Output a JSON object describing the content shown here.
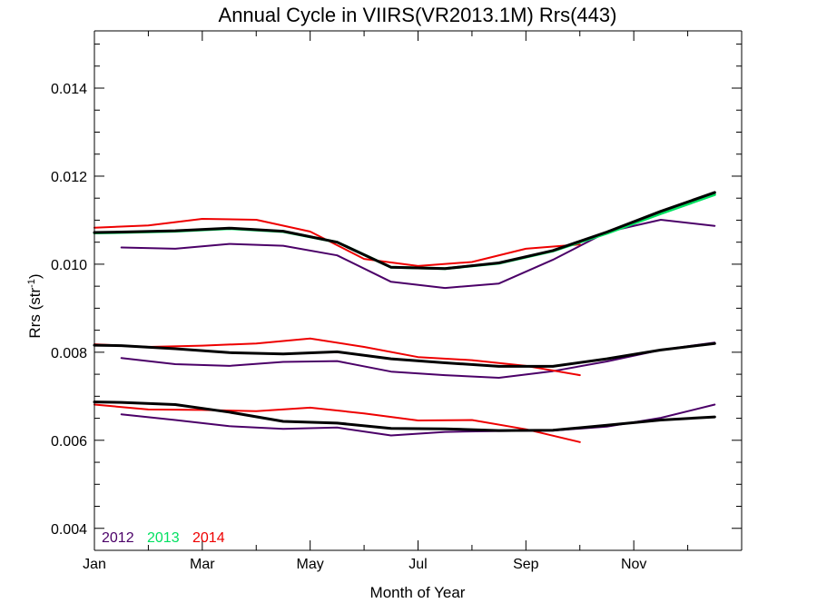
{
  "chart_data": {
    "type": "line",
    "title": "Annual Cycle in VIIRS(VR2013.1M) Rrs(443)",
    "xlabel": "Month of Year",
    "ylabel": "Rrs (str",
    "ylabel_sup": "-1",
    "ylabel_close": ")",
    "xlim": [
      1,
      13
    ],
    "ylim": [
      0.0035,
      0.0153
    ],
    "x_ticks": [
      {
        "value": 1,
        "label": "Jan"
      },
      {
        "value": 3,
        "label": "Mar"
      },
      {
        "value": 5,
        "label": "May"
      },
      {
        "value": 7,
        "label": "Jul"
      },
      {
        "value": 9,
        "label": "Sep"
      },
      {
        "value": 11,
        "label": "Nov"
      }
    ],
    "x_minor_ticks": [
      2,
      4,
      6,
      8,
      10,
      12
    ],
    "y_ticks": [
      {
        "value": 0.004,
        "label": "0.004"
      },
      {
        "value": 0.006,
        "label": "0.006"
      },
      {
        "value": 0.008,
        "label": "0.008"
      },
      {
        "value": 0.01,
        "label": "0.010"
      },
      {
        "value": 0.012,
        "label": "0.012"
      },
      {
        "value": 0.014,
        "label": "0.014"
      }
    ],
    "y_minor_step": 0.0005,
    "grid": false,
    "legend_position": "bottom-left",
    "legend": [
      {
        "label": "2012",
        "color": "#4b0068"
      },
      {
        "label": "2013",
        "color": "#00e060"
      },
      {
        "label": "2014",
        "color": "#ee0000"
      }
    ],
    "series": [
      {
        "group": "upper",
        "color": "#4b0068",
        "width": 2,
        "x": [
          1.5,
          2.5,
          3.5,
          4.5,
          5.5,
          6.5,
          7.5,
          8.5,
          9.5,
          10.5,
          11.5,
          12.5
        ],
        "y": [
          0.01038,
          0.01035,
          0.01046,
          0.01042,
          0.0102,
          0.0096,
          0.00946,
          0.00956,
          0.0101,
          0.01073,
          0.01101,
          0.01087
        ]
      },
      {
        "group": "upper",
        "color": "#ee0000",
        "width": 2,
        "x": [
          1,
          2,
          3,
          4,
          5,
          6,
          7,
          8,
          9,
          10
        ],
        "y": [
          0.01083,
          0.01088,
          0.01103,
          0.01101,
          0.01074,
          0.01012,
          0.00996,
          0.01005,
          0.01035,
          0.01045
        ]
      },
      {
        "group": "upper",
        "color": "#00e060",
        "width": 3,
        "x": [
          1,
          1.5,
          2.5,
          3.5,
          4.5,
          5.5,
          6.5,
          7.5,
          8.5,
          9.5,
          10.5,
          11.5,
          12.5
        ],
        "y": [
          0.01071,
          0.01072,
          0.01075,
          0.01081,
          0.01074,
          0.0105,
          0.00993,
          0.0099,
          0.01002,
          0.0103,
          0.0107,
          0.01115,
          0.01158
        ]
      },
      {
        "group": "upper",
        "color": "#000000",
        "width": 3,
        "x": [
          1,
          1.5,
          2.5,
          3.5,
          4.5,
          5.5,
          6.5,
          7.5,
          8.5,
          9.5,
          10.5,
          11.5,
          12.5
        ],
        "y": [
          0.01072,
          0.01073,
          0.01076,
          0.01082,
          0.01075,
          0.0105,
          0.00993,
          0.0099,
          0.01003,
          0.01031,
          0.01073,
          0.0112,
          0.01163
        ]
      },
      {
        "group": "middle",
        "color": "#4b0068",
        "width": 2,
        "x": [
          1.5,
          2.5,
          3.5,
          4.5,
          5.5,
          6.5,
          7.5,
          8.5,
          9.5,
          10.5,
          11.5,
          12.5
        ],
        "y": [
          0.00787,
          0.00773,
          0.00769,
          0.00778,
          0.0078,
          0.00756,
          0.00748,
          0.00742,
          0.00757,
          0.00779,
          0.00805,
          0.00822
        ]
      },
      {
        "group": "middle",
        "color": "#ee0000",
        "width": 2,
        "x": [
          1,
          2,
          3,
          4,
          5,
          6,
          7,
          8,
          9,
          10
        ],
        "y": [
          0.00818,
          0.00812,
          0.00815,
          0.0082,
          0.00831,
          0.00812,
          0.00789,
          0.00782,
          0.00769,
          0.00748
        ]
      },
      {
        "group": "middle",
        "color": "#000000",
        "width": 3,
        "x": [
          1,
          1.5,
          2.5,
          3.5,
          4.5,
          5.5,
          6.5,
          7.5,
          8.5,
          9.5,
          10.5,
          11.5,
          12.5
        ],
        "y": [
          0.00816,
          0.00815,
          0.00808,
          0.00799,
          0.00796,
          0.00801,
          0.00785,
          0.00776,
          0.00768,
          0.00768,
          0.00785,
          0.00805,
          0.0082
        ]
      },
      {
        "group": "lower",
        "color": "#4b0068",
        "width": 2,
        "x": [
          1.5,
          2.5,
          3.5,
          4.5,
          5.5,
          6.5,
          7.5,
          8.5,
          9.5,
          10.5,
          11.5,
          12.5
        ],
        "y": [
          0.00659,
          0.00646,
          0.00632,
          0.00626,
          0.00629,
          0.00611,
          0.00619,
          0.00621,
          0.00622,
          0.00631,
          0.00651,
          0.00681
        ]
      },
      {
        "group": "lower",
        "color": "#ee0000",
        "width": 2,
        "x": [
          1,
          2,
          3,
          4,
          5,
          6,
          7,
          8,
          9,
          10
        ],
        "y": [
          0.00681,
          0.0067,
          0.00669,
          0.00666,
          0.00674,
          0.00661,
          0.00645,
          0.00646,
          0.00625,
          0.00596
        ]
      },
      {
        "group": "lower",
        "color": "#000000",
        "width": 3,
        "x": [
          1,
          1.5,
          2.5,
          3.5,
          4.5,
          5.5,
          6.5,
          7.5,
          8.5,
          9.5,
          10.5,
          11.5,
          12.5
        ],
        "y": [
          0.00687,
          0.00686,
          0.00681,
          0.00664,
          0.00643,
          0.00639,
          0.00627,
          0.00626,
          0.00622,
          0.00623,
          0.00634,
          0.00646,
          0.00653
        ]
      }
    ]
  }
}
